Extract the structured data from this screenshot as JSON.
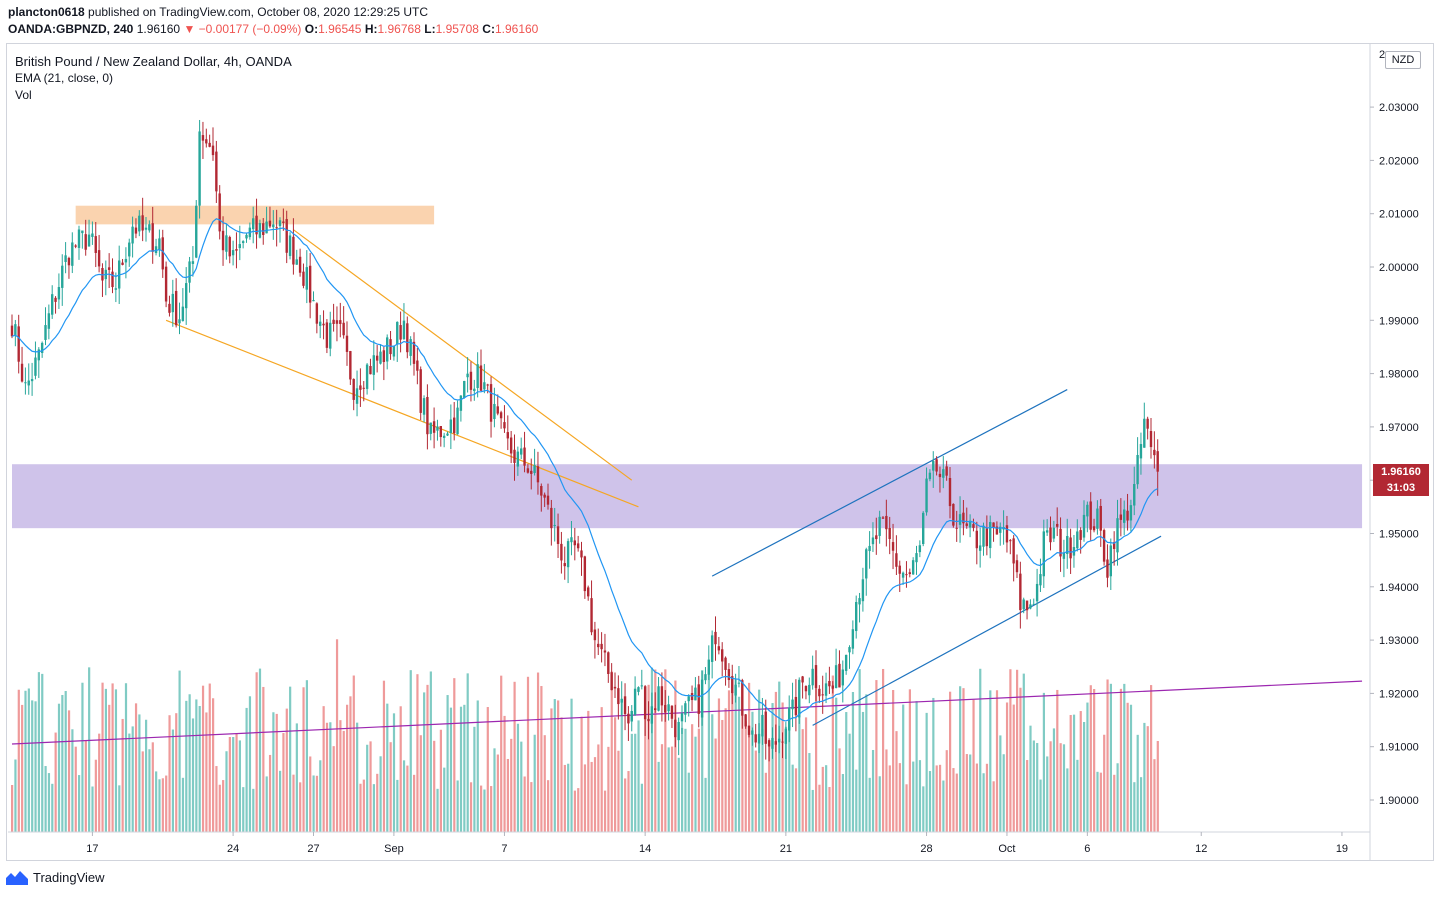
{
  "header": {
    "author": "plancton0618",
    "published_text": " published on TradingView.com, October 08, 2020 12:29:25 UTC",
    "symbol": "OANDA:GBPNZD, 240",
    "last": "1.96160",
    "change": "▼ −0.00177 (−0.09%)",
    "o_label": "O:",
    "o_value": "1.96545",
    "h_label": "H:",
    "h_value": "1.96768",
    "l_label": "L:",
    "l_value": "1.95708",
    "c_label": "C:",
    "c_value": "1.96160"
  },
  "legend": {
    "title": "British Pound / New Zealand Dollar, 4h, OANDA",
    "ema": "EMA (21, close, 0)",
    "vol": "Vol"
  },
  "currency_badge": "NZD",
  "price_tag": {
    "price": "1.96160",
    "countdown": "31:03"
  },
  "footer": {
    "brand": "TradingView"
  },
  "colors": {
    "up": "#26a69a",
    "down": "#b22833",
    "ema": "#2196f3",
    "resistance_zone": "#f9c89b",
    "support_zone": "#c7b8e6",
    "wedge": "#f5a623",
    "channel": "#1e73be",
    "trend": "#9c27b0"
  },
  "chart_data": {
    "type": "candlestick",
    "timeframe": "4h",
    "ylim": [
      1.8945,
      2.041
    ],
    "y_ticks": [
      1.9,
      1.91,
      1.92,
      1.93,
      1.94,
      1.95,
      1.96,
      1.97,
      1.98,
      1.99,
      2.0,
      2.01,
      2.02,
      2.03
    ],
    "y_tick_labels": [
      "1.90000",
      "1.91000",
      "1.92000",
      "1.93000",
      "1.94000",
      "1.95000",
      "1.96000",
      "1.97000",
      "1.98000",
      "1.99000",
      "2.00000",
      "2.01000",
      "2.02000",
      "2.03000"
    ],
    "y_top_label_partial": "2",
    "x_ticks": [
      {
        "label": "17",
        "bar": 24
      },
      {
        "label": "24",
        "bar": 66
      },
      {
        "label": "27",
        "bar": 90
      },
      {
        "label": "Sep",
        "bar": 114
      },
      {
        "label": "7",
        "bar": 147
      },
      {
        "label": "14",
        "bar": 189
      },
      {
        "label": "21",
        "bar": 231
      },
      {
        "label": "28",
        "bar": 273
      },
      {
        "label": "Oct",
        "bar": 297
      },
      {
        "label": "6",
        "bar": 321
      },
      {
        "label": "12",
        "bar": 355
      },
      {
        "label": "19",
        "bar": 397
      }
    ],
    "bars_total": 403,
    "ohlc_path": [
      [
        0,
        1.99
      ],
      [
        4,
        1.977
      ],
      [
        8,
        1.983
      ],
      [
        12,
        1.993
      ],
      [
        17,
        2.003
      ],
      [
        23,
        2.006
      ],
      [
        27,
        1.997
      ],
      [
        31,
        1.997
      ],
      [
        36,
        2.008
      ],
      [
        40,
        2.006
      ],
      [
        44,
        2.005
      ],
      [
        46,
        1.994
      ],
      [
        50,
        1.991
      ],
      [
        54,
        2.001
      ],
      [
        56,
        2.026
      ],
      [
        60,
        2.022
      ],
      [
        62,
        2.006
      ],
      [
        66,
        2.001
      ],
      [
        70,
        2.006
      ],
      [
        74,
        2.007
      ],
      [
        78,
        2.009
      ],
      [
        81,
        2.006
      ],
      [
        86,
        2.001
      ],
      [
        90,
        1.993
      ],
      [
        94,
        1.987
      ],
      [
        98,
        1.987
      ],
      [
        102,
        1.978
      ],
      [
        106,
        1.981
      ],
      [
        110,
        1.983
      ],
      [
        114,
        1.986
      ],
      [
        117,
        1.99
      ],
      [
        121,
        1.978
      ],
      [
        125,
        1.968
      ],
      [
        129,
        1.97
      ],
      [
        133,
        1.972
      ],
      [
        136,
        1.98
      ],
      [
        140,
        1.979
      ],
      [
        144,
        1.972
      ],
      [
        147,
        1.967
      ],
      [
        151,
        1.964
      ],
      [
        154,
        1.963
      ],
      [
        158,
        1.958
      ],
      [
        161,
        1.952
      ],
      [
        165,
        1.945
      ],
      [
        168,
        1.947
      ],
      [
        171,
        1.941
      ],
      [
        174,
        1.93
      ],
      [
        177,
        1.925
      ],
      [
        181,
        1.92
      ],
      [
        184,
        1.914
      ],
      [
        187,
        1.922
      ],
      [
        190,
        1.916
      ],
      [
        193,
        1.92
      ],
      [
        196,
        1.917
      ],
      [
        199,
        1.913
      ],
      [
        202,
        1.917
      ],
      [
        205,
        1.919
      ],
      [
        208,
        1.925
      ],
      [
        210,
        1.932
      ],
      [
        214,
        1.925
      ],
      [
        216,
        1.921
      ],
      [
        219,
        1.916
      ],
      [
        221,
        1.912
      ],
      [
        224,
        1.913
      ],
      [
        226,
        1.909
      ],
      [
        229,
        1.912
      ],
      [
        231,
        1.915
      ],
      [
        233,
        1.916
      ],
      [
        236,
        1.922
      ],
      [
        239,
        1.924
      ],
      [
        242,
        1.921
      ],
      [
        245,
        1.921
      ],
      [
        248,
        1.925
      ],
      [
        251,
        1.935
      ],
      [
        254,
        1.943
      ],
      [
        256,
        1.946
      ],
      [
        259,
        1.951
      ],
      [
        262,
        1.948
      ],
      [
        265,
        1.943
      ],
      [
        268,
        1.942
      ],
      [
        271,
        1.947
      ],
      [
        273,
        1.958
      ],
      [
        276,
        1.962
      ],
      [
        279,
        1.958
      ],
      [
        282,
        1.952
      ],
      [
        285,
        1.95
      ],
      [
        288,
        1.949
      ],
      [
        291,
        1.95
      ],
      [
        294,
        1.949
      ],
      [
        296,
        1.951
      ],
      [
        299,
        1.944
      ],
      [
        301,
        1.937
      ],
      [
        303,
        1.936
      ],
      [
        306,
        1.94
      ],
      [
        308,
        1.948
      ],
      [
        311,
        1.95
      ],
      [
        313,
        1.948
      ],
      [
        315,
        1.947
      ],
      [
        318,
        1.951
      ],
      [
        321,
        1.953
      ],
      [
        324,
        1.952
      ],
      [
        327,
        1.944
      ],
      [
        329,
        1.95
      ],
      [
        332,
        1.953
      ],
      [
        335,
        1.958
      ],
      [
        336,
        1.962
      ],
      [
        338,
        1.971
      ],
      [
        340,
        1.965
      ],
      [
        342,
        1.9616
      ]
    ],
    "ema": {
      "period": 21,
      "source": "close",
      "offset": 0
    },
    "zones": [
      {
        "from": 2.008,
        "to": 2.0115,
        "bar_from": 19,
        "bar_to": 126,
        "kind": "resistance"
      },
      {
        "from": 1.951,
        "to": 1.963,
        "bar_from": 0,
        "bar_to": 403,
        "kind": "support"
      }
    ],
    "trendlines": [
      {
        "kind": "wedge",
        "p1": [
          84,
          2.007
        ],
        "p2": [
          185,
          1.96
        ]
      },
      {
        "kind": "wedge",
        "p1": [
          46,
          1.99
        ],
        "p2": [
          187,
          1.955
        ]
      },
      {
        "kind": "channel",
        "p1": [
          209,
          1.942
        ],
        "p2": [
          315,
          1.977
        ]
      },
      {
        "kind": "channel",
        "p1": [
          239,
          1.914
        ],
        "p2": [
          343,
          1.9495
        ]
      },
      {
        "kind": "trend",
        "p1": [
          0,
          1.9105
        ],
        "p2": [
          403,
          1.9223
        ]
      }
    ],
    "volume": {
      "max_height_fraction": 0.3
    }
  }
}
